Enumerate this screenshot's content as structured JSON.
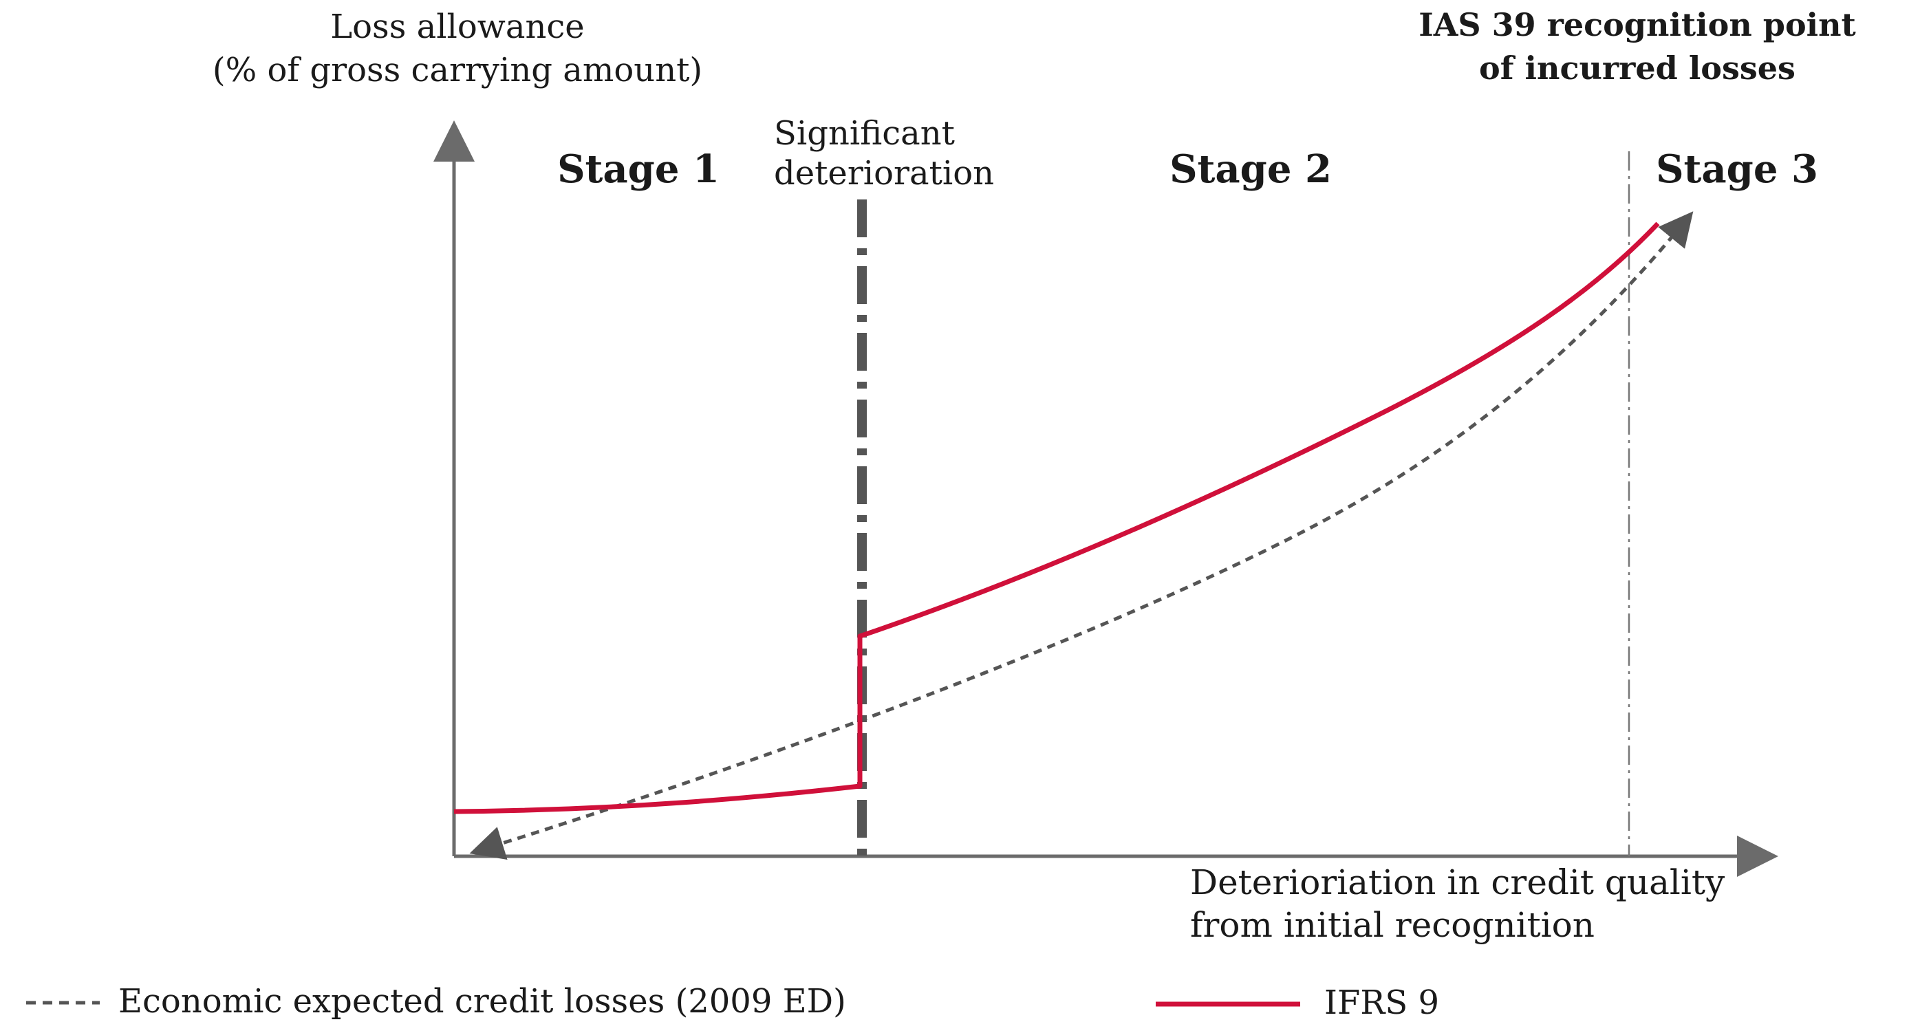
{
  "y_axis_label": {
    "line1": "Loss allowance",
    "line2": "(% of gross carrying amount)"
  },
  "x_axis_label": {
    "line1": "Deterioriation in credit quality",
    "line2": "from initial recognition"
  },
  "stages": {
    "stage1": "Stage 1",
    "stage2": "Stage 2",
    "stage3": "Stage 3"
  },
  "significant_deterioration": {
    "line1": "Significant",
    "line2": "deterioration"
  },
  "ias39": {
    "line1": "IAS 39 recognition point",
    "line2": "of incurred losses"
  },
  "legend": {
    "economic": "Economic expected credit losses (2009 ED)",
    "ifrs9": "IFRS 9"
  },
  "colors": {
    "ifrs9_line": "#d0103a",
    "economic_line": "#555555",
    "axis": "#6b6b6b",
    "marker_line": "#555555"
  }
}
